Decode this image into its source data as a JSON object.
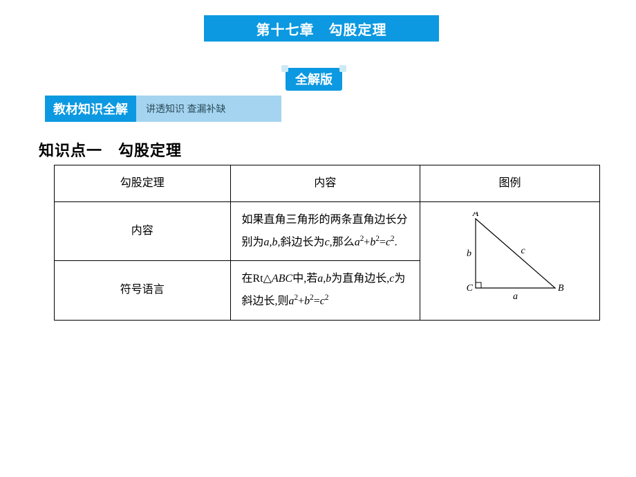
{
  "chapter_title": "第十七章　勾股定理",
  "version_tag": "全解版",
  "section_bar": {
    "main": "教材知识全解",
    "sub": "讲透知识  查漏补缺"
  },
  "knowledge_point_title": "知识点一　勾股定理",
  "table": {
    "headers": [
      "勾股定理",
      "内容",
      "图例"
    ],
    "rows": [
      {
        "label": "内容"
      },
      {
        "label": "符号语言"
      }
    ]
  },
  "diagram": {
    "labels": {
      "A": "A",
      "B": "B",
      "C": "C",
      "a": "a",
      "b": "b",
      "c": "c"
    },
    "stroke": "#000000",
    "label_font_family": "Times New Roman, serif",
    "label_font_size": 14,
    "vertices": {
      "A": [
        30,
        10
      ],
      "B": [
        145,
        110
      ],
      "C": [
        30,
        110
      ]
    },
    "right_angle_marker_size": 8
  },
  "colors": {
    "brand_blue": "#0c99e1",
    "light_blue": "#a5d4f0",
    "tag_corner": "#cde9f6",
    "text_black": "#000000",
    "section_sub_text": "#2a4a58",
    "background": "#ffffff"
  },
  "typography": {
    "chapter_fontsize": 20,
    "version_fontsize": 18,
    "section_main_fontsize": 18,
    "section_sub_fontsize": 14,
    "kp_title_fontsize": 22,
    "table_fontsize": 16
  }
}
